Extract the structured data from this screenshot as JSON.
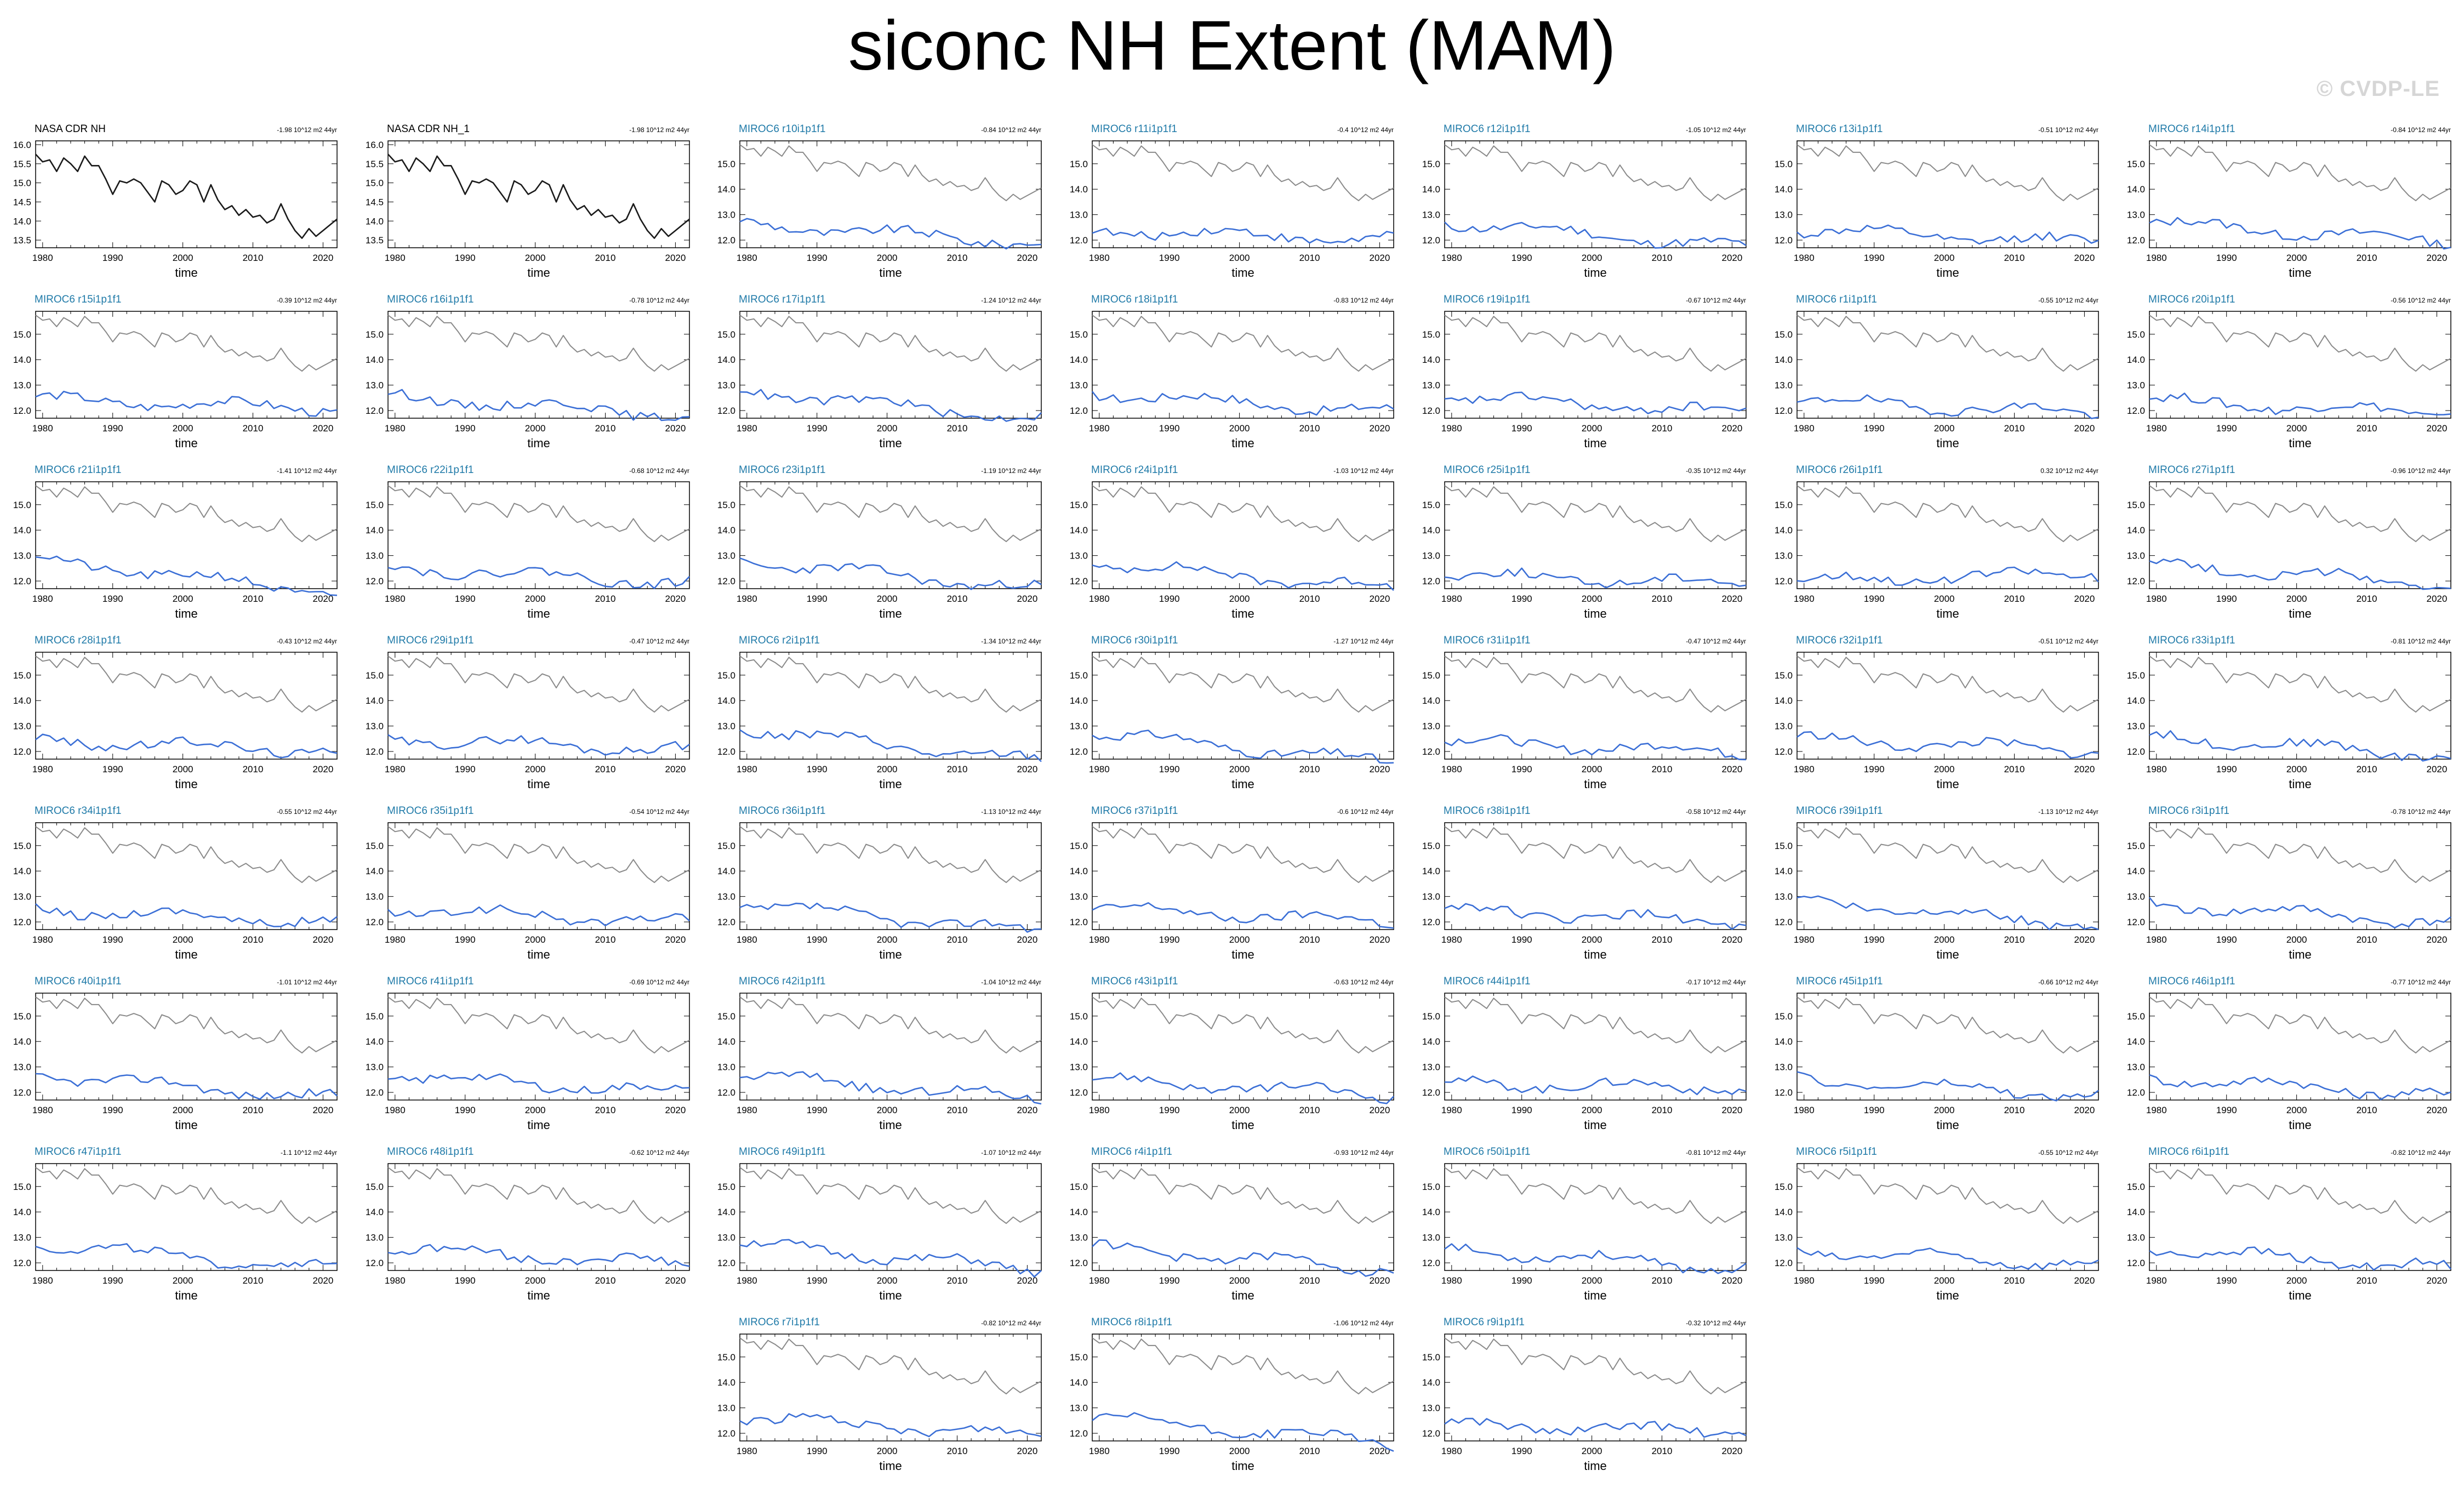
{
  "page": {
    "title": "siconc NH Extent (MAM)",
    "watermark": "© CVDP-LE"
  },
  "style": {
    "obs_color": "#1a1a1a",
    "model_color": "#3b6fd6",
    "obs_ref_color": "#8a8a8a",
    "member_title_color": "#1f7aa8",
    "obs_title_color": "#000000"
  },
  "chart_data": {
    "type": "line",
    "xlabel": "time",
    "xticks": [
      1980,
      1990,
      2000,
      2010,
      2020
    ],
    "x_range": [
      1979,
      2022
    ],
    "yticks_obs": [
      "16.0",
      "15.5",
      "15.0",
      "14.5",
      "14.0",
      "13.5"
    ],
    "ylim_obs": [
      13.3,
      16.1
    ],
    "yticks_model": [
      "15.0",
      "14.0",
      "13.0",
      "12.0"
    ],
    "ylim_model": [
      11.7,
      15.9
    ],
    "obs_series": [
      15.75,
      15.55,
      15.6,
      15.3,
      15.65,
      15.5,
      15.3,
      15.7,
      15.45,
      15.45,
      15.1,
      14.7,
      15.05,
      15.0,
      15.1,
      15.0,
      14.75,
      14.5,
      15.05,
      14.95,
      14.7,
      14.8,
      15.05,
      14.95,
      14.5,
      14.95,
      14.55,
      14.3,
      14.4,
      14.15,
      14.3,
      14.1,
      14.15,
      13.95,
      14.05,
      14.45,
      14.05,
      13.75,
      13.55,
      13.8,
      13.6,
      13.75,
      13.9,
      14.05
    ],
    "obs_ref_series": [
      15.75,
      15.55,
      15.6,
      15.3,
      15.65,
      15.5,
      15.3,
      15.7,
      15.45,
      15.45,
      15.1,
      14.7,
      15.05,
      15.0,
      15.1,
      15.0,
      14.75,
      14.5,
      15.05,
      14.95,
      14.7,
      14.8,
      15.05,
      14.95,
      14.5,
      14.95,
      14.55,
      14.3,
      14.4,
      14.15,
      14.3,
      14.1,
      14.15,
      13.95,
      14.05,
      14.45,
      14.05,
      13.75,
      13.55,
      13.8,
      13.6,
      13.75,
      13.9,
      14.05
    ],
    "panels": [
      {
        "title": "NASA CDR NH",
        "trend": "-1.98 10^12 m2 44yr",
        "type": "obs"
      },
      {
        "title": "NASA CDR NH_1",
        "trend": "-1.98 10^12 m2 44yr",
        "type": "obs"
      },
      {
        "title": "MIROC6 r10i1p1f1",
        "trend": "-0.84 10^12 m2 44yr",
        "type": "model",
        "base": 12.65,
        "slope": -0.018
      },
      {
        "title": "MIROC6 r11i1p1f1",
        "trend": "-0.4 10^12 m2 44yr",
        "type": "model",
        "base": 12.4,
        "slope": -0.009
      },
      {
        "title": "MIROC6 r12i1p1f1",
        "trend": "-1.05 10^12 m2 44yr",
        "type": "model",
        "base": 12.7,
        "slope": -0.023
      },
      {
        "title": "MIROC6 r13i1p1f1",
        "trend": "-0.51 10^12 m2 44yr",
        "type": "model",
        "base": 12.4,
        "slope": -0.012
      },
      {
        "title": "MIROC6 r14i1p1f1",
        "trend": "-0.84 10^12 m2 44yr",
        "type": "model",
        "base": 12.7,
        "slope": -0.018
      },
      {
        "title": "MIROC6 r15i1p1f1",
        "trend": "-0.39 10^12 m2 44yr",
        "type": "model",
        "base": 12.45,
        "slope": -0.009
      },
      {
        "title": "MIROC6 r16i1p1f1",
        "trend": "-0.78 10^12 m2 44yr",
        "type": "model",
        "base": 12.55,
        "slope": -0.017
      },
      {
        "title": "MIROC6 r17i1p1f1",
        "trend": "-1.24 10^12 m2 44yr",
        "type": "model",
        "base": 12.8,
        "slope": -0.027
      },
      {
        "title": "MIROC6 r18i1p1f1",
        "trend": "-0.83 10^12 m2 44yr",
        "type": "model",
        "base": 12.7,
        "slope": -0.018
      },
      {
        "title": "MIROC6 r19i1p1f1",
        "trend": "-0.67 10^12 m2 44yr",
        "type": "model",
        "base": 12.55,
        "slope": -0.015
      },
      {
        "title": "MIROC6 r1i1p1f1",
        "trend": "-0.55 10^12 m2 44yr",
        "type": "model",
        "base": 12.4,
        "slope": -0.012
      },
      {
        "title": "MIROC6 r20i1p1f1",
        "trend": "-0.56 10^12 m2 44yr",
        "type": "model",
        "base": 12.4,
        "slope": -0.012
      },
      {
        "title": "MIROC6 r21i1p1f1",
        "trend": "-1.41 10^12 m2 44yr",
        "type": "model",
        "base": 12.85,
        "slope": -0.031
      },
      {
        "title": "MIROC6 r22i1p1f1",
        "trend": "-0.68 10^12 m2 44yr",
        "type": "model",
        "base": 12.55,
        "slope": -0.015
      },
      {
        "title": "MIROC6 r23i1p1f1",
        "trend": "-1.19 10^12 m2 44yr",
        "type": "model",
        "base": 12.8,
        "slope": -0.026
      },
      {
        "title": "MIROC6 r24i1p1f1",
        "trend": "-1.03 10^12 m2 44yr",
        "type": "model",
        "base": 12.7,
        "slope": -0.023
      },
      {
        "title": "MIROC6 r25i1p1f1",
        "trend": "-0.35 10^12 m2 44yr",
        "type": "model",
        "base": 12.25,
        "slope": -0.008
      },
      {
        "title": "MIROC6 r26i1p1f1",
        "trend": "0.32 10^12 m2 44yr",
        "type": "model",
        "base": 12.0,
        "slope": 0.007
      },
      {
        "title": "MIROC6 r27i1p1f1",
        "trend": "-0.96 10^12 m2 44yr",
        "type": "model",
        "base": 12.7,
        "slope": -0.021
      },
      {
        "title": "MIROC6 r28i1p1f1",
        "trend": "-0.43 10^12 m2 44yr",
        "type": "model",
        "base": 12.45,
        "slope": -0.01
      },
      {
        "title": "MIROC6 r29i1p1f1",
        "trend": "-0.47 10^12 m2 44yr",
        "type": "model",
        "base": 12.5,
        "slope": -0.01
      },
      {
        "title": "MIROC6 r2i1p1f1",
        "trend": "-1.34 10^12 m2 44yr",
        "type": "model",
        "base": 12.9,
        "slope": -0.03
      },
      {
        "title": "MIROC6 r30i1p1f1",
        "trend": "-1.27 10^12 m2 44yr",
        "type": "model",
        "base": 12.75,
        "slope": -0.028
      },
      {
        "title": "MIROC6 r31i1p1f1",
        "trend": "-0.47 10^12 m2 44yr",
        "type": "model",
        "base": 12.4,
        "slope": -0.01
      },
      {
        "title": "MIROC6 r32i1p1f1",
        "trend": "-0.51 10^12 m2 44yr",
        "type": "model",
        "base": 12.5,
        "slope": -0.011
      },
      {
        "title": "MIROC6 r33i1p1f1",
        "trend": "-0.81 10^12 m2 44yr",
        "type": "model",
        "base": 12.6,
        "slope": -0.018
      },
      {
        "title": "MIROC6 r34i1p1f1",
        "trend": "-0.55 10^12 m2 44yr",
        "type": "model",
        "base": 12.5,
        "slope": -0.012
      },
      {
        "title": "MIROC6 r35i1p1f1",
        "trend": "-0.54 10^12 m2 44yr",
        "type": "model",
        "base": 12.5,
        "slope": -0.012
      },
      {
        "title": "MIROC6 r36i1p1f1",
        "trend": "-1.13 10^12 m2 44yr",
        "type": "model",
        "base": 12.7,
        "slope": -0.025
      },
      {
        "title": "MIROC6 r37i1p1f1",
        "trend": "-0.6 10^12 m2 44yr",
        "type": "model",
        "base": 12.55,
        "slope": -0.013
      },
      {
        "title": "MIROC6 r38i1p1f1",
        "trend": "-0.58 10^12 m2 44yr",
        "type": "model",
        "base": 12.5,
        "slope": -0.013
      },
      {
        "title": "MIROC6 r39i1p1f1",
        "trend": "-1.13 10^12 m2 44yr",
        "type": "model",
        "base": 12.9,
        "slope": -0.025
      },
      {
        "title": "MIROC6 r3i1p1f1",
        "trend": "-0.78 10^12 m2 44yr",
        "type": "model",
        "base": 12.7,
        "slope": -0.017
      },
      {
        "title": "MIROC6 r40i1p1f1",
        "trend": "-1.01 10^12 m2 44yr",
        "type": "model",
        "base": 12.7,
        "slope": -0.022
      },
      {
        "title": "MIROC6 r41i1p1f1",
        "trend": "-0.69 10^12 m2 44yr",
        "type": "model",
        "base": 12.65,
        "slope": -0.015
      },
      {
        "title": "MIROC6 r42i1p1f1",
        "trend": "-1.04 10^12 m2 44yr",
        "type": "model",
        "base": 12.7,
        "slope": -0.023
      },
      {
        "title": "MIROC6 r43i1p1f1",
        "trend": "-0.63 10^12 m2 44yr",
        "type": "model",
        "base": 12.5,
        "slope": -0.014
      },
      {
        "title": "MIROC6 r44i1p1f1",
        "trend": "-0.17 10^12 m2 44yr",
        "type": "model",
        "base": 12.35,
        "slope": -0.004
      },
      {
        "title": "MIROC6 r45i1p1f1",
        "trend": "-0.66 10^12 m2 44yr",
        "type": "model",
        "base": 12.5,
        "slope": -0.015
      },
      {
        "title": "MIROC6 r46i1p1f1",
        "trend": "-0.77 10^12 m2 44yr",
        "type": "model",
        "base": 12.6,
        "slope": -0.017
      },
      {
        "title": "MIROC6 r47i1p1f1",
        "trend": "-1.1 10^12 m2 44yr",
        "type": "model",
        "base": 12.75,
        "slope": -0.024
      },
      {
        "title": "MIROC6 r48i1p1f1",
        "trend": "-0.62 10^12 m2 44yr",
        "type": "model",
        "base": 12.55,
        "slope": -0.014
      },
      {
        "title": "MIROC6 r49i1p1f1",
        "trend": "-1.07 10^12 m2 44yr",
        "type": "model",
        "base": 12.75,
        "slope": -0.024
      },
      {
        "title": "MIROC6 r4i1p1f1",
        "trend": "-0.93 10^12 m2 44yr",
        "type": "model",
        "base": 12.6,
        "slope": -0.02
      },
      {
        "title": "MIROC6 r50i1p1f1",
        "trend": "-0.81 10^12 m2 44yr",
        "type": "model",
        "base": 12.55,
        "slope": -0.018
      },
      {
        "title": "MIROC6 r5i1p1f1",
        "trend": "-0.55 10^12 m2 44yr",
        "type": "model",
        "base": 12.45,
        "slope": -0.012
      },
      {
        "title": "MIROC6 r6i1p1f1",
        "trend": "-0.82 10^12 m2 44yr",
        "type": "model",
        "base": 12.55,
        "slope": -0.018
      },
      {
        "title": "MIROC6 r7i1p1f1",
        "trend": "-0.82 10^12 m2 44yr",
        "type": "model",
        "base": 12.65,
        "slope": -0.018
      },
      {
        "title": "MIROC6 r8i1p1f1",
        "trend": "-1.06 10^12 m2 44yr",
        "type": "model",
        "base": 12.6,
        "slope": -0.023
      },
      {
        "title": "MIROC6 r9i1p1f1",
        "trend": "-0.32 10^12 m2 44yr",
        "type": "model",
        "base": 12.35,
        "slope": -0.007
      }
    ]
  }
}
